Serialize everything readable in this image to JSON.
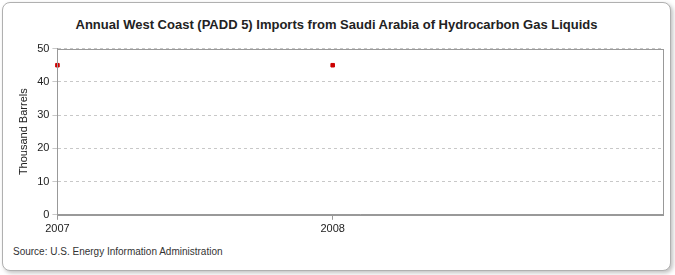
{
  "chart_data": {
    "type": "scatter",
    "title": "Annual West Coast (PADD 5) Imports from Saudi Arabia of Hydrocarbon Gas Liquids",
    "y_label": "Thousand Barrels",
    "source": "Source: U.S. Energy Information Administration",
    "x": [
      2007,
      2008
    ],
    "values": [
      45,
      45
    ],
    "color": "#cc0000",
    "marker": "square",
    "xlim": [
      2007,
      2009.2
    ],
    "xticks": [
      2007,
      2008
    ],
    "ylim": [
      0,
      50
    ],
    "yticks": [
      0,
      10,
      20,
      30,
      40,
      50
    ],
    "grid": true
  }
}
